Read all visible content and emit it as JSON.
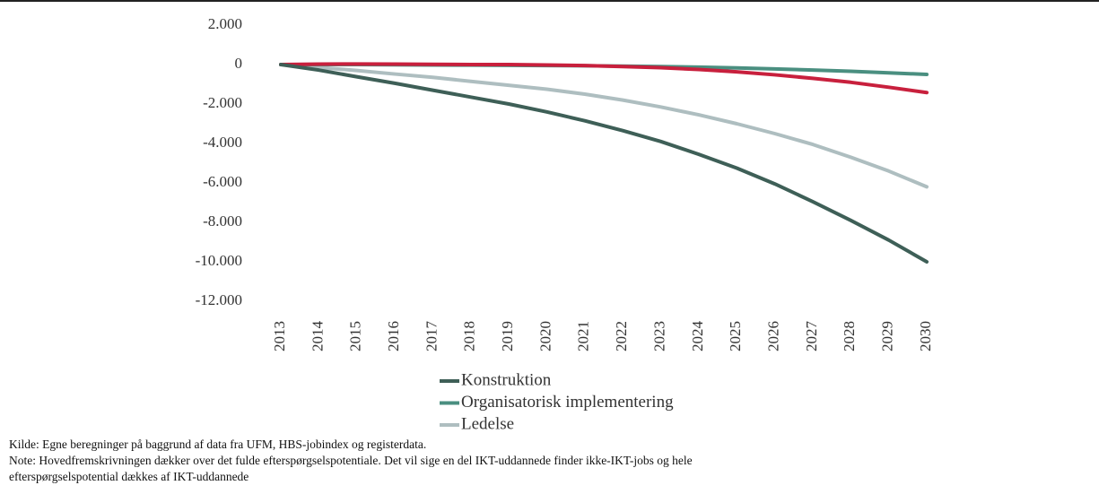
{
  "chart_data": {
    "type": "line",
    "x": [
      2013,
      2014,
      2015,
      2016,
      2017,
      2018,
      2019,
      2020,
      2021,
      2022,
      2023,
      2024,
      2025,
      2026,
      2027,
      2028,
      2029,
      2030
    ],
    "xticks": [
      2013,
      2014,
      2015,
      2016,
      2017,
      2018,
      2019,
      2020,
      2021,
      2022,
      2023,
      2024,
      2025,
      2026,
      2027,
      2028,
      2029,
      2030
    ],
    "xlim": [
      2013,
      2030
    ],
    "ylim": [
      -12000,
      2000
    ],
    "yticks": [
      {
        "value": -12000,
        "label": "-12.000"
      },
      {
        "value": -10000,
        "label": "-10.000"
      },
      {
        "value": -8000,
        "label": "-8.000"
      },
      {
        "value": -6000,
        "label": "-6.000"
      },
      {
        "value": -4000,
        "label": "-4.000"
      },
      {
        "value": -2000,
        "label": "-2.000"
      },
      0,
      {
        "value": 2000,
        "label": "2.000"
      }
    ],
    "series": [
      {
        "name": "Konstruktion",
        "color": "#3e5f57",
        "values": [
          0,
          -280,
          -620,
          -950,
          -1300,
          -1650,
          -2000,
          -2400,
          -2850,
          -3350,
          -3900,
          -4550,
          -5250,
          -6050,
          -6950,
          -7900,
          -8900,
          -10000
        ]
      },
      {
        "name": "Organisatorisk implementering",
        "color": "#4a8f80",
        "values": [
          0,
          0,
          0,
          -10,
          -20,
          -30,
          -40,
          -50,
          -60,
          -80,
          -100,
          -130,
          -170,
          -220,
          -280,
          -340,
          -420,
          -500
        ]
      },
      {
        "name": "Ledelse",
        "color": "#aebec0",
        "values": [
          0,
          -150,
          -300,
          -480,
          -650,
          -850,
          -1050,
          -1250,
          -1500,
          -1800,
          -2150,
          -2550,
          -3000,
          -3500,
          -4050,
          -4700,
          -5400,
          -6200
        ]
      },
      {
        "color": "#c8203d",
        "values": [
          0,
          20,
          30,
          20,
          10,
          0,
          0,
          -20,
          -50,
          -100,
          -160,
          -250,
          -370,
          -520,
          -700,
          -900,
          -1150,
          -1420
        ]
      }
    ],
    "notes": [
      "Kilde: Egne beregninger på baggrund af data fra UFM, HBS-jobindex og registerdata.",
      "Note: Hovedfremskrivningen dækker over det fulde efterspørgselspotentiale. Det vil sige en del IKT-uddannede finder ikke-IKT-jobs og hele",
      "efterspørgselspotential dækkes af IKT-uddannede"
    ]
  }
}
